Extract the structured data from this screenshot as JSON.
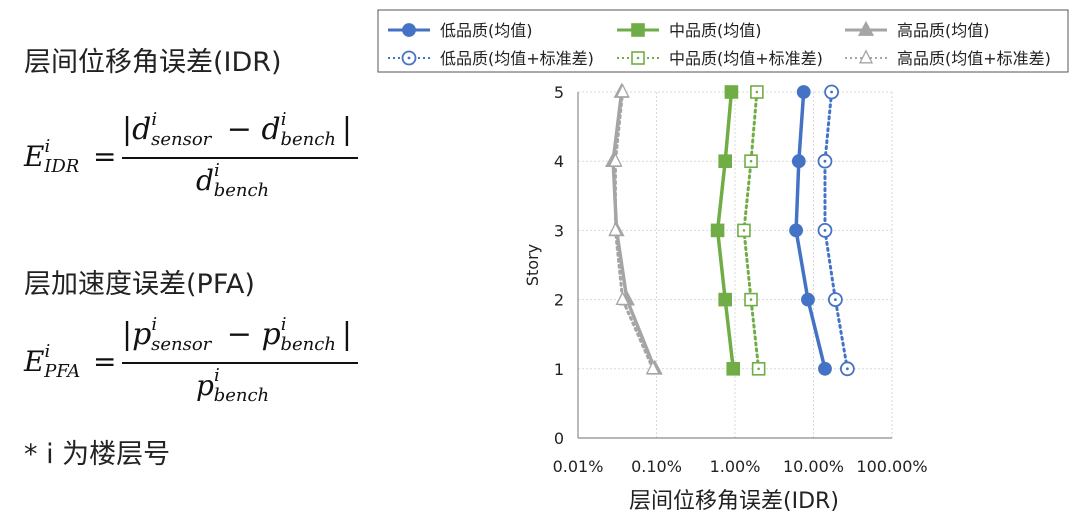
{
  "left_panel": {
    "idr_heading": "层间位移角误差(IDR)",
    "pfa_heading": "层加速度误差(PFA)",
    "footnote": "* i 为楼层号",
    "idr_formula": {
      "lhs_base": "E",
      "lhs_sup": "i",
      "lhs_sub": "IDR",
      "num_a_base": "d",
      "num_a_sup": "i",
      "num_a_sub": "sensor",
      "num_b_base": "d",
      "num_b_sup": "i",
      "num_b_sub": "bench",
      "den_base": "d",
      "den_sup": "i",
      "den_sub": "bench"
    },
    "pfa_formula": {
      "lhs_base": "E",
      "lhs_sup": "i",
      "lhs_sub": "PFA",
      "num_a_base": "p",
      "num_a_sup": "i",
      "num_a_sub": "sensor",
      "num_b_base": "p",
      "num_b_sup": "i",
      "num_b_sub": "bench",
      "den_base": "p",
      "den_sup": "i",
      "den_sub": "bench"
    }
  },
  "chart_data": {
    "type": "line",
    "xlabel": "层间位移角误差(IDR)",
    "ylabel": "Story",
    "x_scale": "log",
    "xlim": [
      0.0001,
      1
    ],
    "ylim": [
      0,
      5
    ],
    "x_ticks": [
      0.0001,
      0.001,
      0.01,
      0.1,
      1
    ],
    "x_tick_labels": [
      "0.01%",
      "0.10%",
      "1.00%",
      "10.00%",
      "100.00%"
    ],
    "y_ticks": [
      0,
      1,
      2,
      3,
      4,
      5
    ],
    "y_tick_labels": [
      "0",
      "1",
      "2",
      "3",
      "4",
      "5"
    ],
    "grid": true,
    "legend_position": "top",
    "colors": {
      "low": "#4472C4",
      "mid": "#70AD47",
      "high": "#A5A5A5"
    },
    "y": [
      1,
      2,
      3,
      4,
      5
    ],
    "series": [
      {
        "name": "低品质(均值)",
        "color": "#4472C4",
        "style": "solid",
        "marker": "circle-filled",
        "x": [
          0.14,
          0.085,
          0.06,
          0.065,
          0.075
        ]
      },
      {
        "name": "中品质(均值)",
        "color": "#70AD47",
        "style": "solid",
        "marker": "square-filled",
        "x": [
          0.0095,
          0.0075,
          0.006,
          0.0075,
          0.009
        ]
      },
      {
        "name": "高品质(均值)",
        "color": "#A5A5A5",
        "style": "solid",
        "marker": "triangle-filled",
        "x": [
          0.00095,
          0.00042,
          0.00031,
          0.00028,
          0.00036
        ]
      },
      {
        "name": "低品质(均值+标准差)",
        "color": "#4472C4",
        "style": "dotted",
        "marker": "circle-open",
        "x": [
          0.27,
          0.19,
          0.14,
          0.14,
          0.17
        ]
      },
      {
        "name": "中品质(均值+标准差)",
        "color": "#70AD47",
        "style": "dotted",
        "marker": "square-open",
        "x": [
          0.02,
          0.016,
          0.013,
          0.016,
          0.019
        ]
      },
      {
        "name": "高品质(均值+标准差)",
        "color": "#A5A5A5",
        "style": "dotted",
        "marker": "triangle-open",
        "x": [
          0.0009,
          0.00037,
          0.0003,
          0.0003,
          0.00037
        ]
      }
    ]
  }
}
